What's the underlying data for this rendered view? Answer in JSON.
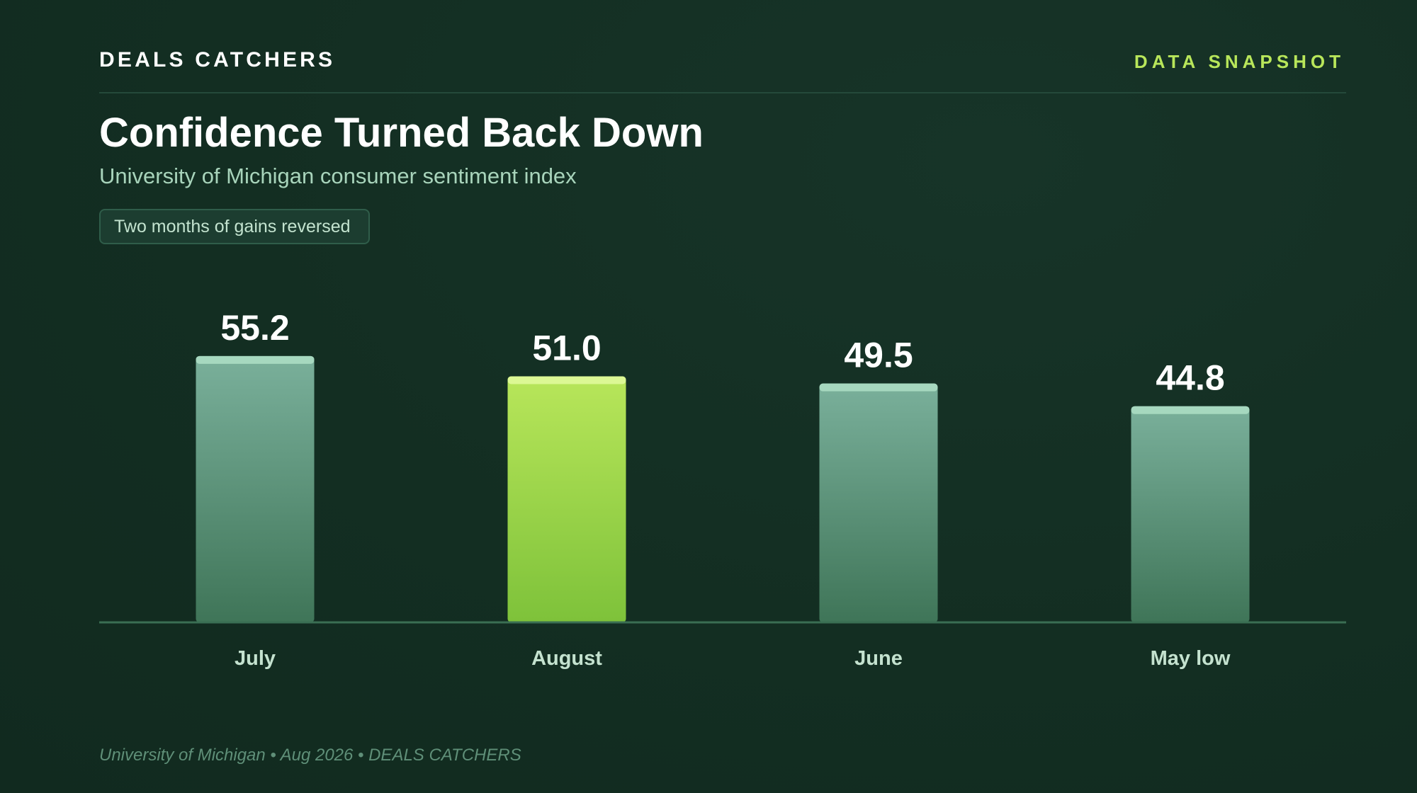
{
  "header": {
    "brand": "DEALS CATCHERS",
    "tag": "DATA SNAPSHOT"
  },
  "colors": {
    "background": "#132e22",
    "bar_default_top": "#7ab09b",
    "bar_default_bottom": "#3f7558",
    "bar_default_cap": "#a6d8bf",
    "bar_highlight_top": "#b8e65a",
    "bar_highlight_bottom": "#7ec23a",
    "bar_highlight_cap": "#dcf894",
    "axis": "#3a6e53",
    "value_label": "#ffffff",
    "category_label": "#c4e2cf"
  },
  "chart_data": {
    "type": "bar",
    "title": "Confidence Turned Back Down",
    "subtitle": "University of Michigan consumer sentiment index",
    "annotation": "Two months of gains reversed",
    "categories": [
      "July",
      "August",
      "June",
      "May low"
    ],
    "values": [
      55.2,
      51.0,
      49.5,
      44.8
    ],
    "value_labels": [
      "55.2",
      "51.0",
      "49.5",
      "44.8"
    ],
    "highlight_index": 1,
    "ylim": [
      0,
      56.2
    ],
    "grid": false,
    "legend": "none",
    "xlabel": "",
    "ylabel": ""
  },
  "footer": {
    "source": "University of Michigan • Aug 2026 • DEALS CATCHERS"
  }
}
